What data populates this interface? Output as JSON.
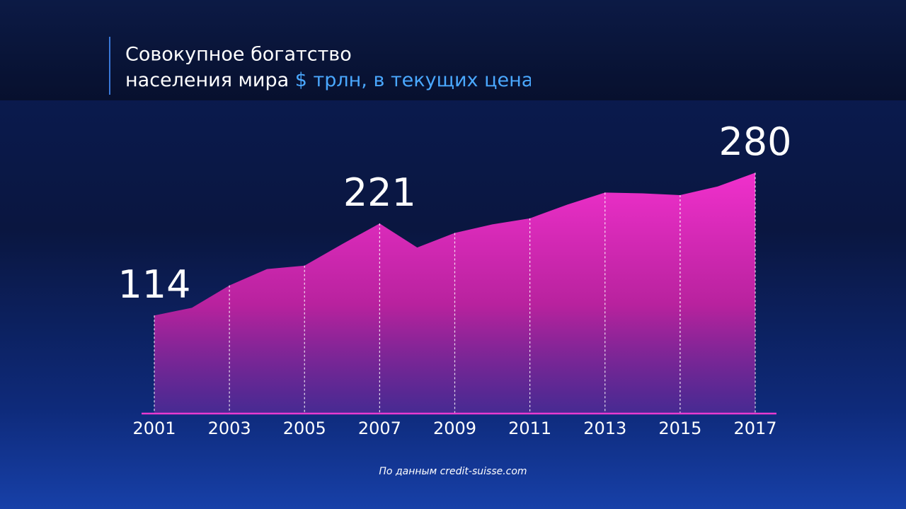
{
  "chart_data": {
    "type": "area",
    "title": [
      "Совокупное богатство",
      "населения мира"
    ],
    "subtitle": "$ трлн, в текущих цена",
    "source": "По данным credit-suisse.com",
    "x": [
      2001,
      2002,
      2003,
      2004,
      2005,
      2006,
      2007,
      2008,
      2009,
      2010,
      2011,
      2012,
      2013,
      2014,
      2015,
      2016,
      2017
    ],
    "values": [
      114,
      123,
      149,
      168,
      172,
      197,
      221,
      193,
      210,
      220,
      227,
      243,
      257,
      256,
      254,
      264,
      280
    ],
    "value_labels": [
      "114",
      null,
      null,
      null,
      null,
      null,
      "221",
      null,
      null,
      null,
      null,
      null,
      null,
      null,
      null,
      null,
      "280"
    ],
    "xlim": [
      2001,
      2017
    ],
    "xticks": [
      2001,
      2003,
      2005,
      2007,
      2009,
      2011,
      2013,
      2015,
      2017
    ],
    "ylim": [
      0,
      300
    ],
    "grid": true,
    "color": "#e52fc9"
  }
}
